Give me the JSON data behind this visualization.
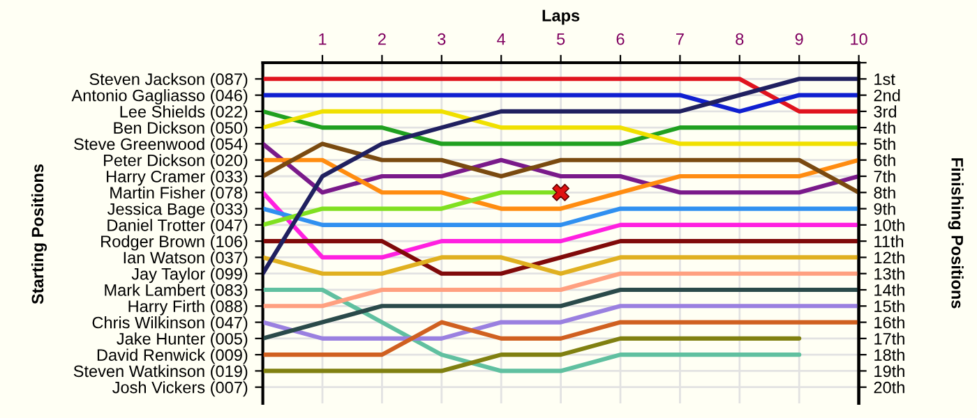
{
  "chart_data": {
    "type": "line",
    "xlabel": "Laps",
    "ylabel": "Finishing Positions",
    "annotations": [
      "Starting Positions"
    ],
    "x": [
      0,
      1,
      2,
      3,
      4,
      5,
      6,
      7,
      8,
      9,
      10
    ],
    "xlim": [
      0,
      10
    ],
    "xticks": [
      1,
      2,
      3,
      4,
      5,
      6,
      7,
      8,
      9,
      10
    ],
    "y_categories": [
      "Steven Jackson (087)",
      "Antonio Gagliasso (046)",
      "Lee Shields (022)",
      "Ben Dickson (050)",
      "Steve Greenwood (054)",
      "Peter Dickson (020)",
      "Harry Cramer (033)",
      "Martin Fisher (078)",
      "Jessica Bage (033)",
      "Daniel Trotter (047)",
      "Rodger Brown (106)",
      "Ian Watson (037)",
      "Jay Taylor (099)",
      "Mark Lambert (083)",
      "Harry Firth (088)",
      "Chris Wilkinson (047)",
      "Jake Hunter (005)",
      "David Renwick (009)",
      "Steven Watkinson (019)",
      "Josh Vickers (007)"
    ],
    "ylim": [
      21,
      0
    ],
    "yticks": [
      {
        "value": 0,
        "label": null
      },
      {
        "value": 1,
        "label": "1st"
      },
      {
        "value": 2,
        "label": "2nd"
      },
      {
        "value": 3,
        "label": "3rd"
      },
      {
        "value": 4,
        "label": "4th"
      },
      {
        "value": 5,
        "label": "5th"
      },
      {
        "value": 6,
        "label": "6th"
      },
      {
        "value": 7,
        "label": "7th"
      },
      {
        "value": 8,
        "label": "8th"
      },
      {
        "value": 9,
        "label": "9th"
      },
      {
        "value": 10,
        "label": "10th"
      },
      {
        "value": 11,
        "label": "11th"
      },
      {
        "value": 12,
        "label": "12th"
      },
      {
        "value": 13,
        "label": "13th"
      },
      {
        "value": 14,
        "label": "14th"
      },
      {
        "value": 15,
        "label": "15th"
      },
      {
        "value": 16,
        "label": "16th"
      },
      {
        "value": 17,
        "label": "17th"
      },
      {
        "value": 18,
        "label": "18th"
      },
      {
        "value": 19,
        "label": "19th"
      },
      {
        "value": 20,
        "label": "20th"
      }
    ],
    "grid": true,
    "marker": "none",
    "line_style": "solid",
    "series": [
      {
        "color": "#e0141e",
        "values": [
          1,
          1,
          1,
          1,
          1,
          1,
          1,
          1,
          1,
          3,
          3
        ]
      },
      {
        "color": "#1020d0",
        "values": [
          2,
          2,
          2,
          2,
          2,
          2,
          2,
          2,
          3,
          2,
          2
        ]
      },
      {
        "color": "#20a020",
        "values": [
          3,
          4,
          4,
          5,
          5,
          5,
          5,
          4,
          4,
          4,
          4
        ]
      },
      {
        "color": "#f0e000",
        "values": [
          4,
          3,
          3,
          3,
          4,
          4,
          4,
          5,
          5,
          5,
          5
        ]
      },
      {
        "color": "#7a1a8a",
        "values": [
          5,
          8,
          7,
          7,
          6,
          7,
          7,
          8,
          8,
          8,
          7
        ]
      },
      {
        "color": "#ff8c10",
        "values": [
          6,
          6,
          8,
          8,
          9,
          9,
          8,
          7,
          7,
          7,
          6
        ]
      },
      {
        "color": "#7a4a10",
        "values": [
          7,
          5,
          6,
          6,
          7,
          6,
          6,
          6,
          6,
          6,
          8
        ]
      },
      {
        "color": "#ff20e0",
        "values": [
          8,
          12,
          12,
          11,
          11,
          11,
          10,
          10,
          10,
          10,
          10
        ]
      },
      {
        "color": "#3090f0",
        "values": [
          9,
          10,
          10,
          10,
          10,
          10,
          9,
          9,
          9,
          9,
          9
        ]
      },
      {
        "color": "#80e020",
        "values": [
          10,
          9,
          9,
          9,
          8,
          8,
          null,
          null,
          null,
          null,
          null
        ]
      },
      {
        "color": "#800a0a",
        "values": [
          11,
          11,
          11,
          13,
          13,
          12,
          11,
          11,
          11,
          11,
          11
        ]
      },
      {
        "color": "#e0b020",
        "values": [
          12,
          13,
          13,
          12,
          12,
          13,
          12,
          12,
          12,
          12,
          12
        ]
      },
      {
        "color": "#202060",
        "values": [
          13,
          7,
          5,
          4,
          3,
          3,
          3,
          3,
          2,
          1,
          1
        ]
      },
      {
        "color": "#60c0a0",
        "values": [
          14,
          14,
          16,
          18,
          19,
          19,
          18,
          18,
          18,
          18,
          null
        ]
      },
      {
        "color": "#ffa080",
        "values": [
          15,
          15,
          14,
          14,
          14,
          14,
          13,
          13,
          13,
          13,
          13
        ]
      },
      {
        "color": "#9a80e0",
        "values": [
          16,
          17,
          17,
          17,
          16,
          16,
          15,
          15,
          15,
          15,
          15
        ]
      },
      {
        "color": "#2a4a4a",
        "values": [
          17,
          16,
          15,
          15,
          15,
          15,
          14,
          14,
          14,
          14,
          14
        ]
      },
      {
        "color": "#d06020",
        "values": [
          18,
          18,
          18,
          16,
          17,
          17,
          16,
          16,
          16,
          16,
          16
        ]
      },
      {
        "color": "#808010",
        "values": [
          19,
          19,
          19,
          19,
          18,
          18,
          17,
          17,
          17,
          17,
          null
        ]
      },
      {
        "type": "scatter",
        "marker": "cross",
        "color": "#e01010",
        "x": [
          5
        ],
        "values": [
          8
        ]
      }
    ]
  }
}
